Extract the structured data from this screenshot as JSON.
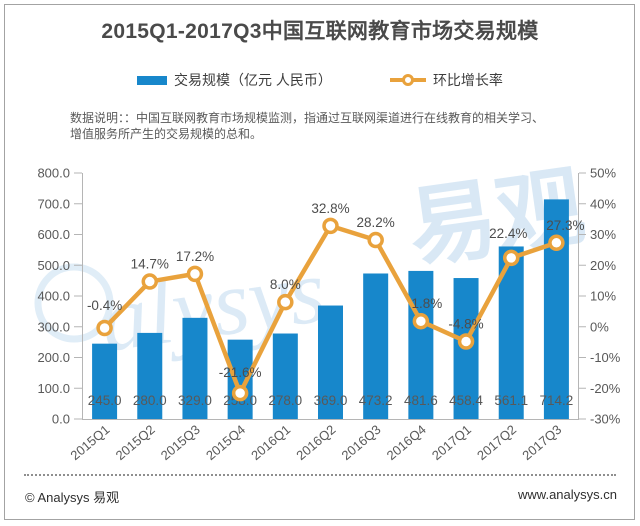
{
  "title": "2015Q1-2017Q3中国互联网教育市场交易规模",
  "legend": {
    "bar_label": "交易规模（亿元 人民币）",
    "line_label": "环比增长率"
  },
  "note": "数据说明：：中国互联网教育市场规模监测，指通过互联网渠道进行在线教育的相关学习、\n增值服务所产生的交易规模的总和。",
  "watermark": {
    "script_text": "alysys",
    "cjk_text": "易观",
    "color": "#BBD7EE"
  },
  "chart_data": {
    "type": "combo",
    "categories": [
      "2015Q1",
      "2015Q2",
      "2015Q3",
      "2015Q4",
      "2016Q1",
      "2016Q2",
      "2016Q3",
      "2016Q4",
      "2017Q1",
      "2017Q2",
      "2017Q3"
    ],
    "series": [
      {
        "name": "交易规模（亿元 人民币）",
        "type": "bar",
        "axis": "left",
        "color": "#1787CB",
        "values": [
          245.0,
          280.0,
          329.0,
          258.0,
          278.0,
          369.0,
          473.2,
          481.6,
          458.4,
          561.1,
          714.2
        ],
        "value_labels": [
          "245.0",
          "280.0",
          "329.0",
          "258.0",
          "278.0",
          "369.0",
          "473.2",
          "481.6",
          "458.4",
          "561.1",
          "714.2"
        ]
      },
      {
        "name": "环比增长率",
        "type": "line",
        "axis": "right",
        "color": "#E9A23C",
        "marker_fill": "#FFFFFF",
        "values": [
          -0.4,
          14.7,
          17.2,
          -21.6,
          8.0,
          32.8,
          28.2,
          1.8,
          -4.8,
          22.4,
          27.3
        ],
        "value_labels": [
          "-0.4%",
          "14.7%",
          "17.2%",
          "-21.6%",
          "8.0%",
          "32.8%",
          "28.2%",
          "1.8%",
          "-4.8%",
          "22.4%",
          "27.3%"
        ]
      }
    ],
    "left_axis": {
      "min": 0,
      "max": 800,
      "step": 100,
      "tick_labels": [
        "0.0",
        "100.0",
        "200.0",
        "300.0",
        "400.0",
        "500.0",
        "600.0",
        "700.0",
        "800.0"
      ]
    },
    "right_axis": {
      "min": -30,
      "max": 50,
      "step": 10,
      "tick_labels": [
        "-30%",
        "-20%",
        "-10%",
        "0%",
        "10%",
        "20%",
        "30%",
        "40%",
        "50%"
      ]
    },
    "grid": false,
    "legend_position": "top",
    "axis_color": "#b5b5b5",
    "label_color": "#595959",
    "point_label_color": "#4d4d4d"
  },
  "footer": {
    "left": "© Analysys 易观",
    "right": "www.analysys.cn"
  }
}
